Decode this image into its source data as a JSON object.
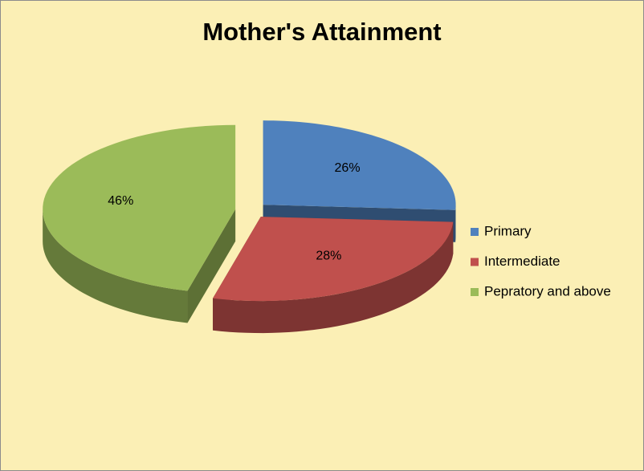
{
  "chart_data": {
    "type": "pie",
    "title": "Mother's Attainment",
    "categories": [
      "Primary",
      "Intermediate",
      "Pepratory and above"
    ],
    "values": [
      26,
      28,
      46
    ],
    "value_labels": [
      "26%",
      "28%",
      "46%"
    ],
    "colors": [
      "#4f81bd",
      "#c0504d",
      "#9bbb59"
    ],
    "legend": "right"
  }
}
